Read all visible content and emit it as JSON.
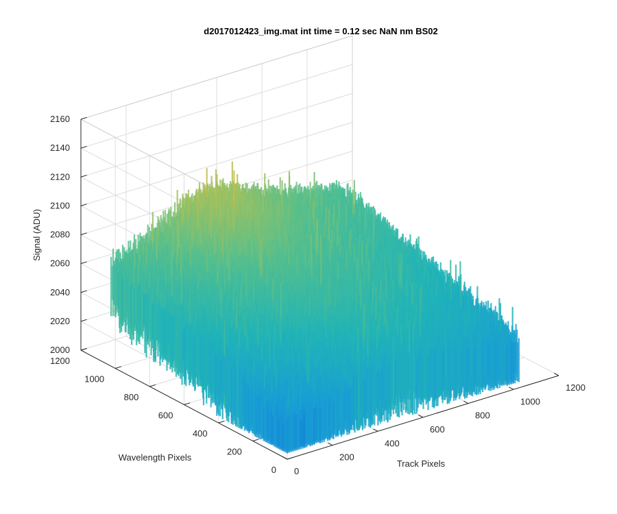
{
  "chart_data": {
    "type": "surface3d",
    "title": "d2017012423_img.mat int time = 0.12 sec  NaN nm BS02",
    "xlabel": "Track Pixels",
    "ylabel": "Wavelength Pixels",
    "zlabel": "Signal (ADU)",
    "xlim": [
      0,
      1200
    ],
    "ylim": [
      0,
      1200
    ],
    "zlim": [
      2000,
      2160
    ],
    "x_ticks": [
      "0",
      "200",
      "400",
      "600",
      "800",
      "1000",
      "1200"
    ],
    "y_ticks": [
      "0",
      "200",
      "400",
      "600",
      "800",
      "1000",
      "1200"
    ],
    "z_ticks": [
      "2000",
      "2020",
      "2040",
      "2060",
      "2080",
      "2100",
      "2120",
      "2140",
      "2160"
    ],
    "data_extent": {
      "x": [
        0,
        1024
      ],
      "y": [
        0,
        1024
      ]
    },
    "grid": true,
    "colormap": [
      "#0d72d6",
      "#199bd6",
      "#20b3b8",
      "#52be8f",
      "#9bc162",
      "#d8bb3e",
      "#e8c334"
    ],
    "surface_summary": {
      "description_values": "Noisy dark-frame signal; low values near the front-left (Wavelength ~0-400), higher values (up to ~2150) toward Track ~300-600, Wavelength ~700-1024",
      "approx_min": 2010,
      "approx_mean": 2060,
      "approx_max": 2155
    }
  }
}
